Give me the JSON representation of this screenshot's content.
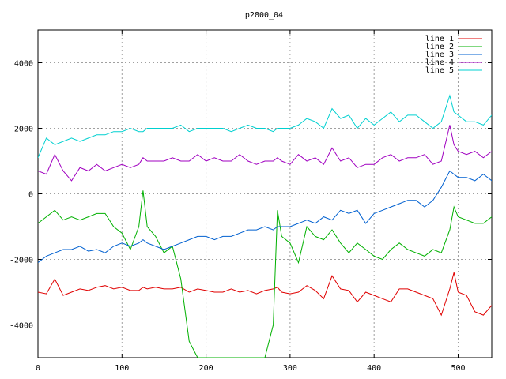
{
  "chart_data": {
    "type": "line",
    "title": "p2800_04",
    "xlim": [
      0,
      540
    ],
    "ylim": [
      -5000,
      5000
    ],
    "x_ticks": [
      0,
      100,
      200,
      300,
      400,
      500
    ],
    "y_ticks": [
      -4000,
      -2000,
      0,
      2000,
      4000
    ],
    "grid": true,
    "legend_position": "top-right",
    "x": [
      0,
      10,
      20,
      30,
      40,
      50,
      60,
      70,
      80,
      90,
      100,
      110,
      120,
      125,
      130,
      140,
      150,
      160,
      170,
      180,
      190,
      200,
      210,
      220,
      230,
      240,
      250,
      260,
      270,
      280,
      285,
      290,
      300,
      310,
      320,
      330,
      340,
      350,
      360,
      370,
      380,
      390,
      400,
      410,
      420,
      430,
      440,
      450,
      460,
      470,
      480,
      490,
      495,
      500,
      510,
      520,
      530,
      540
    ],
    "series": [
      {
        "name": "line 1",
        "color": "#e00000",
        "values": [
          -3000,
          -3050,
          -2600,
          -3100,
          -3000,
          -2900,
          -2950,
          -2850,
          -2800,
          -2900,
          -2850,
          -2950,
          -2950,
          -2850,
          -2900,
          -2850,
          -2900,
          -2900,
          -2850,
          -3000,
          -2900,
          -2950,
          -3000,
          -3000,
          -2900,
          -3000,
          -2950,
          -3050,
          -2950,
          -2900,
          -2850,
          -3000,
          -3050,
          -3000,
          -2800,
          -2950,
          -3200,
          -2500,
          -2900,
          -2950,
          -3300,
          -3000,
          -3100,
          -3200,
          -3300,
          -2900,
          -2900,
          -3000,
          -3100,
          -3200,
          -3700,
          -2900,
          -2400,
          -3000,
          -3100,
          -3600,
          -3700,
          -3400
        ]
      },
      {
        "name": "line 2",
        "color": "#00b000",
        "values": [
          -900,
          -700,
          -500,
          -800,
          -700,
          -800,
          -700,
          -600,
          -600,
          -1000,
          -1200,
          -1700,
          -1000,
          100,
          -1000,
          -1300,
          -1800,
          -1600,
          -2600,
          -4500,
          -5000,
          -5000,
          -5000,
          -5000,
          -5000,
          -5000,
          -5000,
          -5000,
          -5000,
          -4000,
          -500,
          -1300,
          -1500,
          -2100,
          -1000,
          -1300,
          -1400,
          -1100,
          -1500,
          -1800,
          -1500,
          -1700,
          -1900,
          -2000,
          -1700,
          -1500,
          -1700,
          -1800,
          -1900,
          -1700,
          -1800,
          -1100,
          -400,
          -700,
          -800,
          -900,
          -900,
          -700
        ]
      },
      {
        "name": "line 3",
        "color": "#0060d0",
        "values": [
          -2100,
          -1900,
          -1800,
          -1700,
          -1700,
          -1600,
          -1750,
          -1700,
          -1800,
          -1600,
          -1500,
          -1600,
          -1500,
          -1400,
          -1500,
          -1600,
          -1700,
          -1600,
          -1500,
          -1400,
          -1300,
          -1300,
          -1400,
          -1300,
          -1300,
          -1200,
          -1100,
          -1100,
          -1000,
          -1100,
          -1000,
          -1000,
          -1000,
          -900,
          -800,
          -900,
          -700,
          -800,
          -500,
          -600,
          -500,
          -900,
          -600,
          -500,
          -400,
          -300,
          -200,
          -200,
          -400,
          -200,
          200,
          700,
          600,
          500,
          500,
          400,
          600,
          400
        ]
      },
      {
        "name": "line 4",
        "color": "#a000c0",
        "values": [
          700,
          600,
          1200,
          700,
          400,
          800,
          700,
          900,
          700,
          800,
          900,
          800,
          900,
          1100,
          1000,
          1000,
          1000,
          1100,
          1000,
          1000,
          1200,
          1000,
          1100,
          1000,
          1000,
          1200,
          1000,
          900,
          1000,
          1000,
          1100,
          1000,
          900,
          1200,
          1000,
          1100,
          900,
          1400,
          1000,
          1100,
          800,
          900,
          900,
          1100,
          1200,
          1000,
          1100,
          1100,
          1200,
          900,
          1000,
          2100,
          1500,
          1300,
          1200,
          1300,
          1100,
          1300
        ]
      },
      {
        "name": "line 5",
        "color": "#00d0d0",
        "values": [
          1100,
          1700,
          1500,
          1600,
          1700,
          1600,
          1700,
          1800,
          1800,
          1900,
          1900,
          2000,
          1900,
          1900,
          2000,
          2000,
          2000,
          2000,
          2100,
          1900,
          2000,
          2000,
          2000,
          2000,
          1900,
          2000,
          2100,
          2000,
          2000,
          1900,
          2000,
          2000,
          2000,
          2100,
          2300,
          2200,
          2000,
          2600,
          2300,
          2400,
          2000,
          2300,
          2100,
          2300,
          2500,
          2200,
          2400,
          2400,
          2200,
          2000,
          2200,
          3000,
          2500,
          2400,
          2200,
          2200,
          2100,
          2400
        ]
      }
    ]
  }
}
